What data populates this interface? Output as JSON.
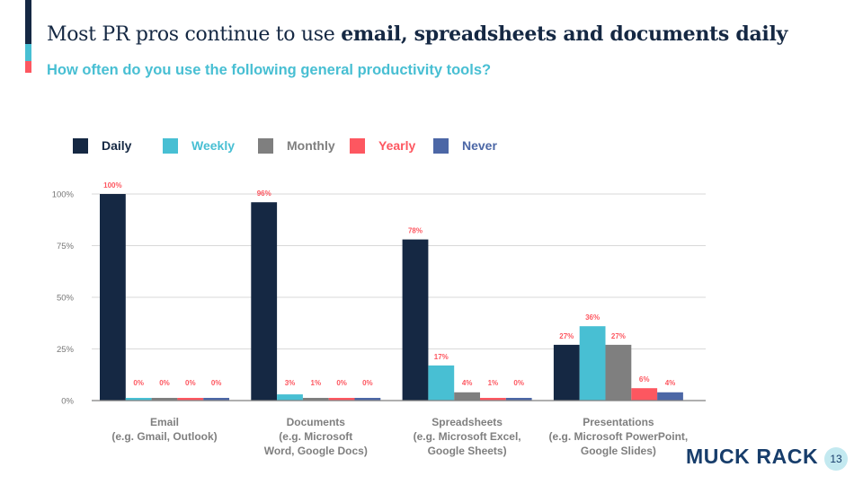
{
  "header": {
    "title_regular": "Most PR pros continue to use ",
    "title_bold": "email, spreadsheets and documents daily",
    "subtitle": "How often do you use the following general productivity tools?"
  },
  "accent_colors": [
    "#152843",
    "#48bfd3",
    "#fd5760"
  ],
  "footer": {
    "logo_text": "MUCK RACK",
    "page_number": "13"
  },
  "chart_data": {
    "type": "bar",
    "title": "How often do you use the following general productivity tools?",
    "xlabel": "",
    "ylabel": "",
    "ylim": [
      0,
      100
    ],
    "yticks": [
      0,
      25,
      50,
      75,
      100
    ],
    "ytick_labels": [
      "0%",
      "25%",
      "50%",
      "75%",
      "100%"
    ],
    "grid": true,
    "legend_position": "top-left",
    "categories": [
      [
        "Email",
        "(e.g. Gmail, Outlook)"
      ],
      [
        "Documents",
        "(e.g. Microsoft",
        "Word, Google Docs)"
      ],
      [
        "Spreadsheets",
        "(e.g. Microsoft Excel,",
        "Google Sheets)"
      ],
      [
        "Presentations",
        "(e.g. Microsoft PowerPoint,",
        "Google Slides)"
      ]
    ],
    "series": [
      {
        "name": "Daily",
        "color": "#152843",
        "values": [
          100,
          96,
          78,
          27
        ]
      },
      {
        "name": "Weekly",
        "color": "#48bfd3",
        "values": [
          0,
          3,
          17,
          36
        ]
      },
      {
        "name": "Monthly",
        "color": "#7f7f7f",
        "values": [
          0,
          1,
          4,
          27
        ]
      },
      {
        "name": "Yearly",
        "color": "#fd5760",
        "values": [
          0,
          0,
          1,
          6
        ]
      },
      {
        "name": "Never",
        "color": "#4c67a6",
        "values": [
          0,
          0,
          0,
          4
        ]
      }
    ],
    "data_label_color": "#fd5760"
  }
}
